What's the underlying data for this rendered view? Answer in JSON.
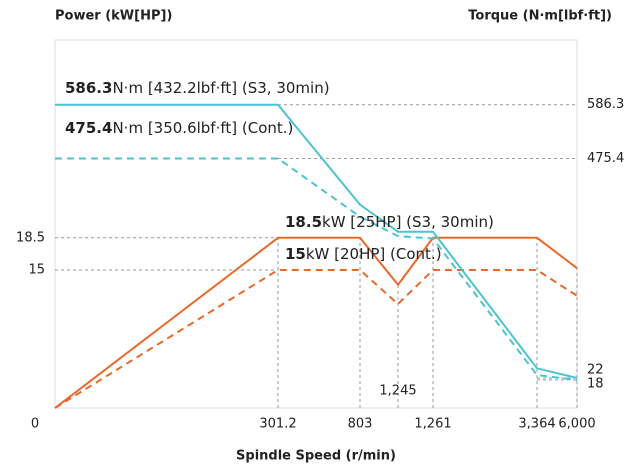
{
  "chart_data": {
    "type": "line",
    "ylabel": "Power (kW[HP])",
    "y2label": "Torque (N·m[lbf·ft])",
    "xlabel": "Spindle Speed (r/min)",
    "categories": [
      null,
      "301.2",
      "803",
      "1,245",
      "1,261",
      "3,364",
      "6,000"
    ],
    "series": [
      {
        "name": "Power S3, 30min",
        "color": "#e8692a",
        "dash": false,
        "values": [
          0,
          18.5,
          18.5,
          13.4,
          18.5,
          18.5,
          15.2
        ]
      },
      {
        "name": "Power Cont.",
        "color": "#e8692a",
        "dash": true,
        "values": [
          0,
          15,
          15,
          11.3,
          15,
          15,
          12.2
        ]
      },
      {
        "name": "Torque S3, 30min",
        "color": "#4cc3d0",
        "dash": false,
        "axis": "y2",
        "values": [
          586.3,
          586.3,
          380,
          324,
          324,
          42,
          22
        ]
      },
      {
        "name": "Torque Cont.",
        "color": "#4cc3d0",
        "dash": true,
        "axis": "y2",
        "values": [
          475.4,
          475.4,
          355,
          315,
          310,
          28,
          18
        ]
      }
    ],
    "ylim": [
      0,
      40
    ],
    "yticks": [
      0,
      15,
      18.5
    ],
    "y2lim": [
      -40,
      720
    ],
    "y2ticks": [
      18,
      22,
      475.4,
      586.3
    ],
    "annotations": [
      {
        "bold": "586.3",
        "text": "N·m [432.2lbf·ft] (S3, 30min)"
      },
      {
        "bold": "475.4",
        "text": "N·m [350.6lbf·ft] (Cont.)"
      },
      {
        "bold": "18.5",
        "text": "kW [25HP] (S3, 30min)"
      },
      {
        "bold": "15",
        "text": "kW  [20HP] (Cont.)"
      }
    ]
  }
}
